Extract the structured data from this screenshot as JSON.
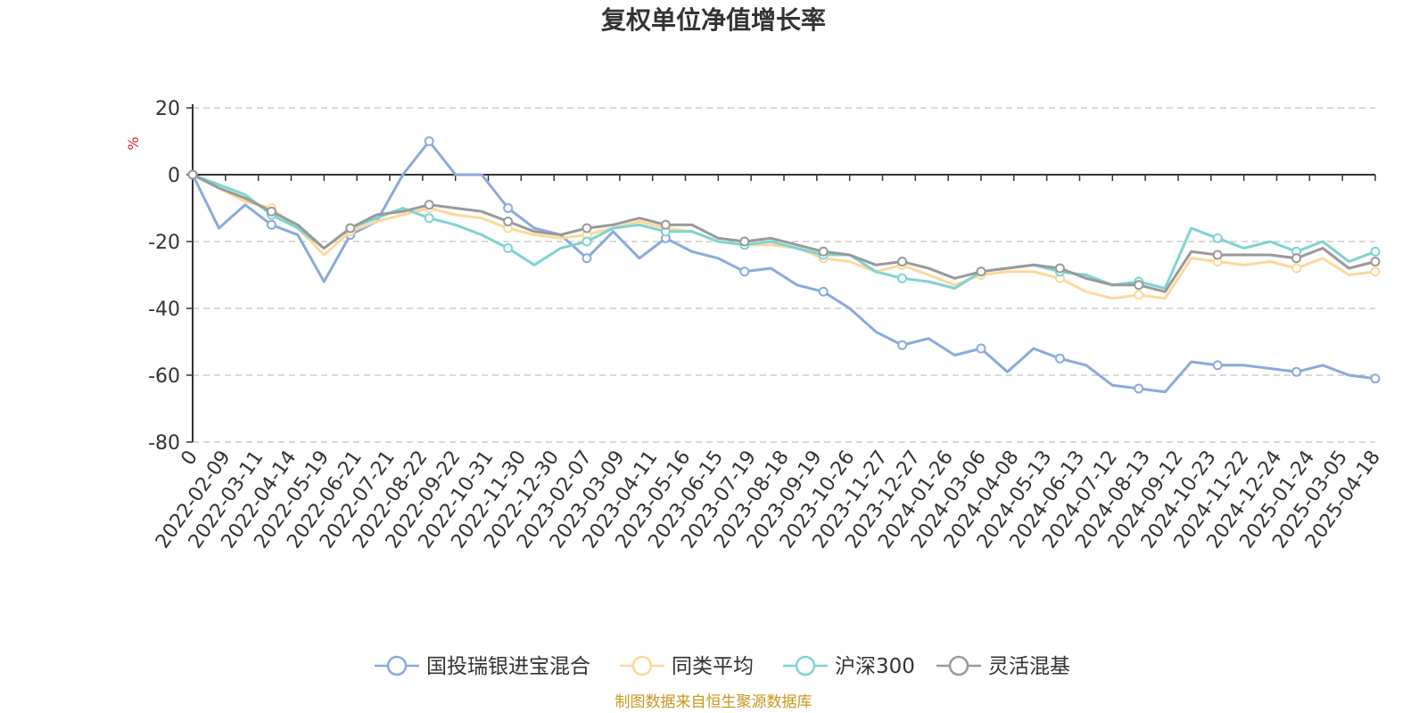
{
  "chart_data": {
    "type": "line",
    "title": "复权单位净值增长率",
    "ylabel": "%",
    "xlabel": "",
    "ylim": [
      -80,
      20
    ],
    "yticks": [
      "20",
      "0",
      "-20",
      "-40",
      "-60",
      "-80"
    ],
    "grid": "horizontal dashed",
    "legend_position": "bottom",
    "source_note": "制图数据来自恒生聚源数据库",
    "x_tick_labels": [
      "0",
      "2022-02-09",
      "2022-03-11",
      "2022-04-14",
      "2022-05-19",
      "2022-06-21",
      "2022-07-21",
      "2022-08-22",
      "2022-09-22",
      "2022-10-31",
      "2022-11-30",
      "2022-12-30",
      "2023-02-07",
      "2023-03-09",
      "2023-04-11",
      "2023-05-16",
      "2023-06-15",
      "2023-07-19",
      "2023-08-18",
      "2023-09-19",
      "2023-10-26",
      "2023-11-27",
      "2023-12-27",
      "2024-01-26",
      "2024-03-06",
      "2024-04-08",
      "2024-05-13",
      "2024-06-13",
      "2024-07-12",
      "2024-08-13",
      "2024-09-12",
      "2024-10-23",
      "2024-11-22",
      "2024-12-24",
      "2025-01-24",
      "2025-03-05",
      "2025-04-18"
    ],
    "series": [
      {
        "name": "国投瑞银进宝混合",
        "color": "#8aaadc",
        "values": [
          0,
          -16,
          -9,
          -15,
          -18,
          -32,
          -18,
          -14,
          0,
          10,
          0,
          0,
          -10,
          -16,
          -18,
          -25,
          -17,
          -25,
          -19,
          -23,
          -25,
          -29,
          -28,
          -33,
          -35,
          -40,
          -47,
          -51,
          -49,
          -54,
          -52,
          -59,
          -52,
          -55,
          -57,
          -63,
          -64,
          -65,
          -56,
          -57,
          -57,
          -58,
          -59,
          -57,
          -60,
          -61
        ]
      },
      {
        "name": "同类平均",
        "color": "#fdd89a",
        "values": [
          0,
          -4,
          -8,
          -10,
          -16,
          -24,
          -17,
          -14,
          -12,
          -10,
          -12,
          -13,
          -16,
          -18,
          -19,
          -18,
          -16,
          -14,
          -16,
          -17,
          -20,
          -21,
          -21,
          -22,
          -25,
          -26,
          -29,
          -27,
          -30,
          -33,
          -30,
          -29,
          -29,
          -31,
          -35,
          -37,
          -36,
          -37,
          -25,
          -26,
          -27,
          -26,
          -28,
          -25,
          -30,
          -29
        ]
      },
      {
        "name": "沪深300",
        "color": "#7ed3d3",
        "values": [
          0,
          -3,
          -6,
          -12,
          -16,
          -22,
          -16,
          -13,
          -10,
          -13,
          -15,
          -18,
          -22,
          -27,
          -22,
          -20,
          -16,
          -15,
          -17,
          -17,
          -20,
          -21,
          -20,
          -22,
          -24,
          -24,
          -29,
          -31,
          -32,
          -34,
          -29,
          -28,
          -27,
          -29,
          -30,
          -33,
          -32,
          -34,
          -16,
          -19,
          -22,
          -20,
          -23,
          -20,
          -26,
          -23
        ]
      },
      {
        "name": "灵活混基",
        "color": "#999999",
        "values": [
          0,
          -4,
          -7,
          -11,
          -15,
          -22,
          -16,
          -12,
          -11,
          -9,
          -10,
          -11,
          -14,
          -17,
          -18,
          -16,
          -15,
          -13,
          -15,
          -15,
          -19,
          -20,
          -19,
          -21,
          -23,
          -24,
          -27,
          -26,
          -28,
          -31,
          -29,
          -28,
          -27,
          -28,
          -31,
          -33,
          -33,
          -35,
          -23,
          -24,
          -24,
          -24,
          -25,
          -22,
          -28,
          -26
        ]
      }
    ]
  }
}
